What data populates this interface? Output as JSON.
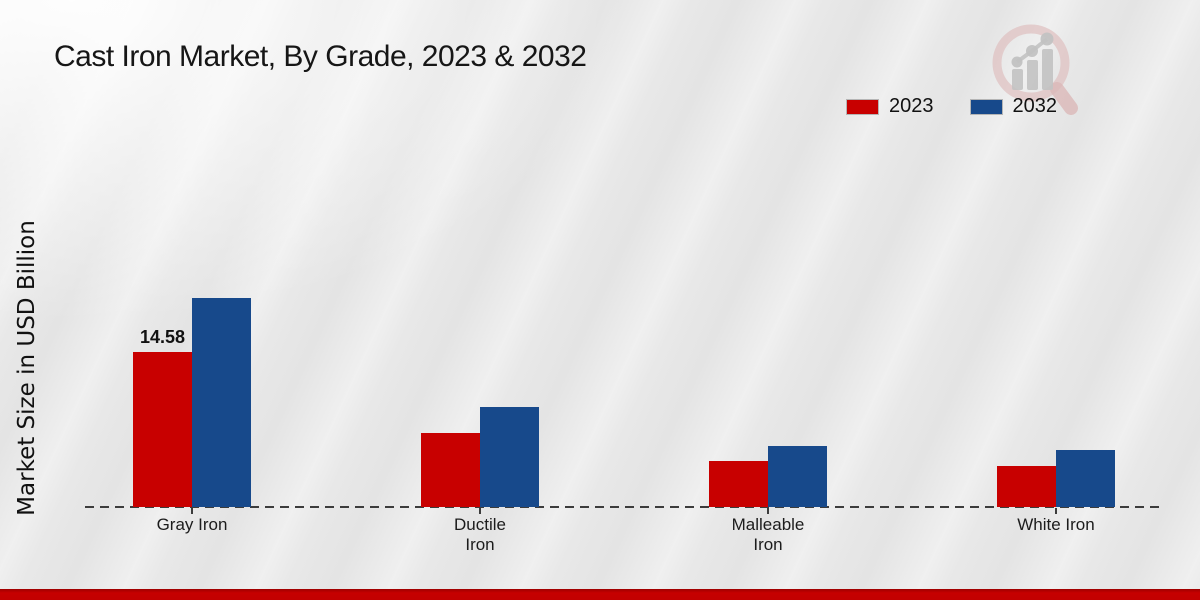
{
  "chart_data": {
    "type": "bar",
    "title": "Cast Iron Market, By Grade, 2023 & 2032",
    "ylabel": "Market Size in USD Billion",
    "categories": [
      "Gray Iron",
      "Ductile\nIron",
      "Malleable\nIron",
      "White Iron"
    ],
    "series": [
      {
        "name": "2023",
        "color": "#c80000",
        "values": [
          14.58,
          7.0,
          4.3,
          3.85
        ]
      },
      {
        "name": "2032",
        "color": "#17498b",
        "values": [
          19.66,
          9.4,
          5.7,
          5.4
        ]
      }
    ],
    "data_labels": [
      {
        "category_index": 0,
        "series_index": 0,
        "text": "14.58"
      }
    ],
    "ylim": [
      0,
      21
    ],
    "grid": false,
    "y_axis_ticks_visible": false,
    "legend_position": "top-right",
    "baseline_style": "dashed"
  },
  "watermark": {
    "icon": "magnifier-bar-chart-logo",
    "ring_color": "#dfc2c2",
    "bars_color": "#c2c2c2"
  },
  "footer": {
    "accent_color": "#c20000"
  }
}
